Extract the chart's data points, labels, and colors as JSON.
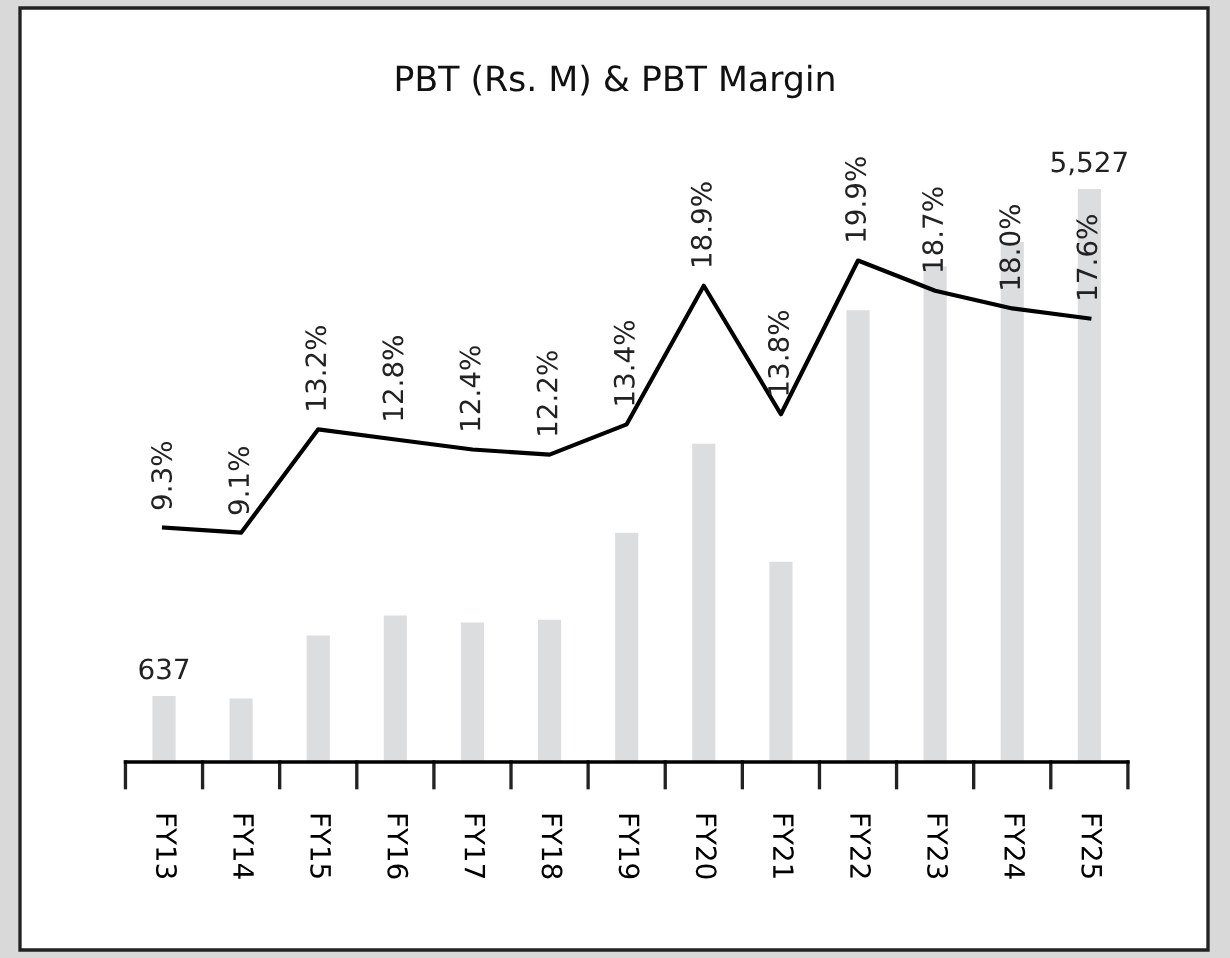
{
  "chart_data": {
    "type": "bar",
    "title": "PBT (Rs. M) & PBT Margin",
    "categories": [
      "FY13",
      "FY14",
      "FY15",
      "FY16",
      "FY17",
      "FY18",
      "FY19",
      "FY20",
      "FY21",
      "FY22",
      "FY23",
      "FY24",
      "FY25"
    ],
    "series": [
      {
        "color": "#dcdddf",
        "values": [
          637,
          613,
          1219,
          1412,
          1345,
          1372,
          2211,
          3070,
          1931,
          4356,
          4782,
          5015,
          5527
        ],
        "value_labels": [
          "637",
          null,
          null,
          null,
          null,
          null,
          null,
          null,
          null,
          null,
          null,
          null,
          "5,527"
        ]
      },
      {
        "type": "line",
        "axis": "y2",
        "color": "#000000",
        "values": [
          9.3,
          9.1,
          13.2,
          12.8,
          12.4,
          12.2,
          13.4,
          18.9,
          13.8,
          19.9,
          18.7,
          18.0,
          17.6
        ],
        "value_labels": [
          "9.3%",
          "9.1%",
          "13.2%",
          "12.8%",
          "12.4%",
          "12.2%",
          "13.4%",
          "18.9%",
          "13.8%",
          "19.9%",
          "18.7%",
          "18.0%",
          "17.6%"
        ]
      }
    ],
    "tick_labels": "x",
    "grid": false,
    "legend": false,
    "marker": "none",
    "line_style": "solid"
  }
}
